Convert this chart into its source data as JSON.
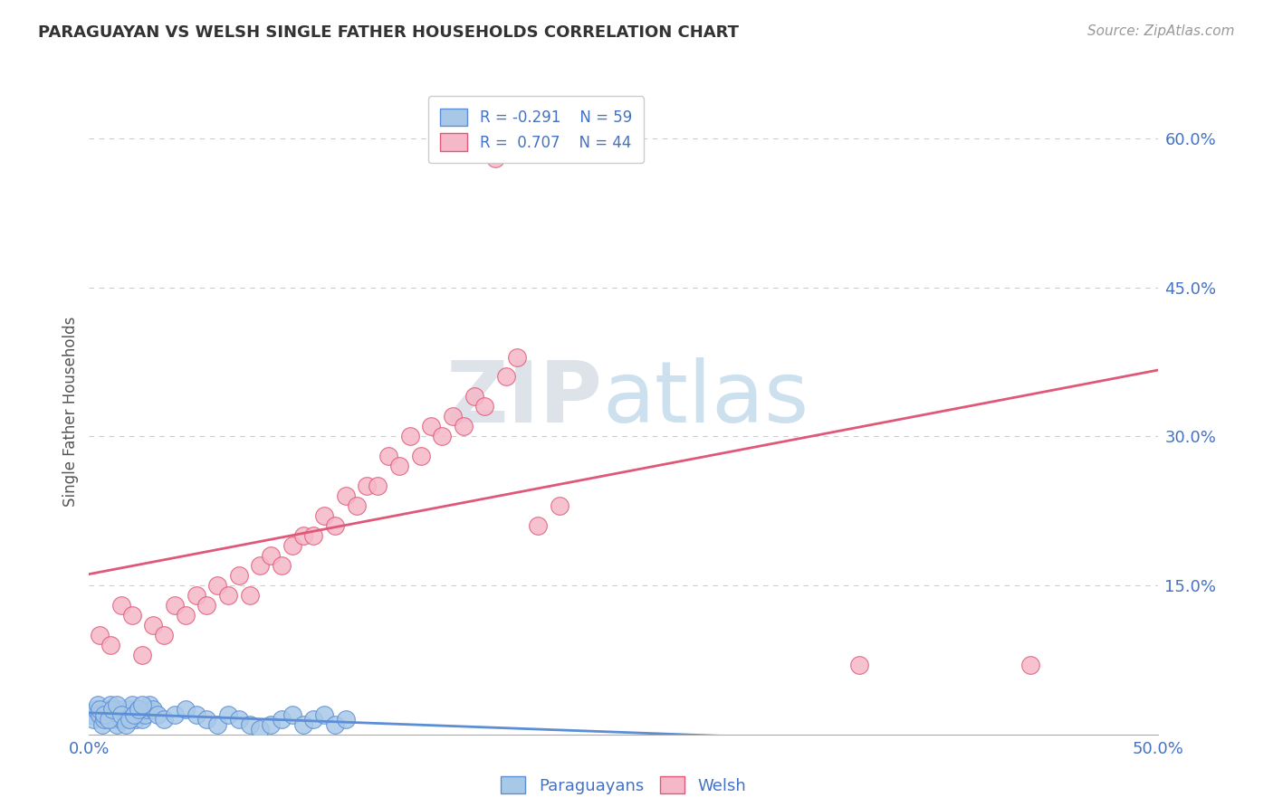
{
  "title": "PARAGUAYAN VS WELSH SINGLE FATHER HOUSEHOLDS CORRELATION CHART",
  "source": "Source: ZipAtlas.com",
  "ylabel": "Single Father Households",
  "paraguayan_R": -0.291,
  "paraguayan_N": 59,
  "welsh_R": 0.707,
  "welsh_N": 44,
  "paraguayan_color": "#a8c8e8",
  "welsh_color": "#f5b8c8",
  "paraguayan_line_color": "#5b8ed6",
  "welsh_line_color": "#e05878",
  "title_color": "#333333",
  "legend_text_color": "#4472c4",
  "axis_label_color": "#555555",
  "tick_color": "#4472c4",
  "grid_color": "#cccccc",
  "background_color": "#ffffff",
  "watermark_zip": "ZIP",
  "watermark_atlas": "atlas",
  "xlim": [
    0.0,
    0.5
  ],
  "ylim": [
    0.0,
    0.65
  ],
  "welsh_x": [
    0.005,
    0.01,
    0.015,
    0.02,
    0.025,
    0.03,
    0.035,
    0.04,
    0.045,
    0.05,
    0.055,
    0.06,
    0.065,
    0.07,
    0.075,
    0.08,
    0.085,
    0.09,
    0.095,
    0.1,
    0.105,
    0.11,
    0.115,
    0.12,
    0.125,
    0.13,
    0.135,
    0.14,
    0.145,
    0.15,
    0.155,
    0.16,
    0.165,
    0.17,
    0.175,
    0.18,
    0.185,
    0.19,
    0.195,
    0.2,
    0.21,
    0.22,
    0.36,
    0.44
  ],
  "welsh_y": [
    0.1,
    0.09,
    0.13,
    0.12,
    0.08,
    0.11,
    0.1,
    0.13,
    0.12,
    0.14,
    0.13,
    0.15,
    0.14,
    0.16,
    0.14,
    0.17,
    0.18,
    0.17,
    0.19,
    0.2,
    0.2,
    0.22,
    0.21,
    0.24,
    0.23,
    0.25,
    0.25,
    0.28,
    0.27,
    0.3,
    0.28,
    0.31,
    0.3,
    0.32,
    0.31,
    0.34,
    0.33,
    0.58,
    0.36,
    0.38,
    0.21,
    0.23,
    0.07,
    0.07
  ],
  "paraguayan_x": [
    0.001,
    0.002,
    0.003,
    0.004,
    0.005,
    0.006,
    0.007,
    0.008,
    0.009,
    0.01,
    0.011,
    0.012,
    0.013,
    0.014,
    0.015,
    0.016,
    0.017,
    0.018,
    0.019,
    0.02,
    0.021,
    0.022,
    0.023,
    0.024,
    0.025,
    0.026,
    0.027,
    0.028,
    0.03,
    0.032,
    0.035,
    0.04,
    0.045,
    0.05,
    0.055,
    0.06,
    0.065,
    0.07,
    0.075,
    0.08,
    0.085,
    0.09,
    0.095,
    0.1,
    0.105,
    0.11,
    0.115,
    0.12,
    0.005,
    0.007,
    0.009,
    0.011,
    0.013,
    0.015,
    0.017,
    0.019,
    0.021,
    0.023,
    0.025
  ],
  "paraguayan_y": [
    0.02,
    0.015,
    0.025,
    0.03,
    0.02,
    0.01,
    0.015,
    0.02,
    0.025,
    0.03,
    0.02,
    0.015,
    0.01,
    0.02,
    0.015,
    0.025,
    0.02,
    0.015,
    0.025,
    0.03,
    0.02,
    0.015,
    0.025,
    0.02,
    0.015,
    0.02,
    0.025,
    0.03,
    0.025,
    0.02,
    0.015,
    0.02,
    0.025,
    0.02,
    0.015,
    0.01,
    0.02,
    0.015,
    0.01,
    0.005,
    0.01,
    0.015,
    0.02,
    0.01,
    0.015,
    0.02,
    0.01,
    0.015,
    0.025,
    0.02,
    0.015,
    0.025,
    0.03,
    0.02,
    0.01,
    0.015,
    0.02,
    0.025,
    0.03
  ]
}
